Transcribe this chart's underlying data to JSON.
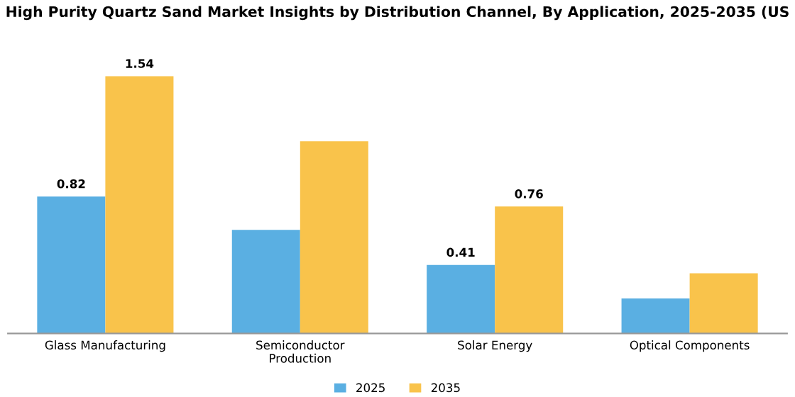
{
  "chart_data": {
    "type": "bar",
    "title": "High Purity Quartz Sand Market Insights by Distribution Channel, By Application, 2025-2035 (US",
    "categories": [
      "Glass Manufacturing",
      "Semiconductor\nProduction",
      "Solar Energy",
      "Optical Components"
    ],
    "series": [
      {
        "name": "2025",
        "color": "#5aafe2",
        "values": [
          0.82,
          0.62,
          0.41,
          0.21
        ],
        "value_labels": [
          "0.82",
          null,
          "0.41",
          null
        ]
      },
      {
        "name": "2035",
        "color": "#f9c34b",
        "values": [
          1.54,
          1.15,
          0.76,
          0.36
        ],
        "value_labels": [
          "1.54",
          null,
          "0.76",
          null
        ]
      }
    ],
    "legend": "bottom",
    "grid": false
  }
}
